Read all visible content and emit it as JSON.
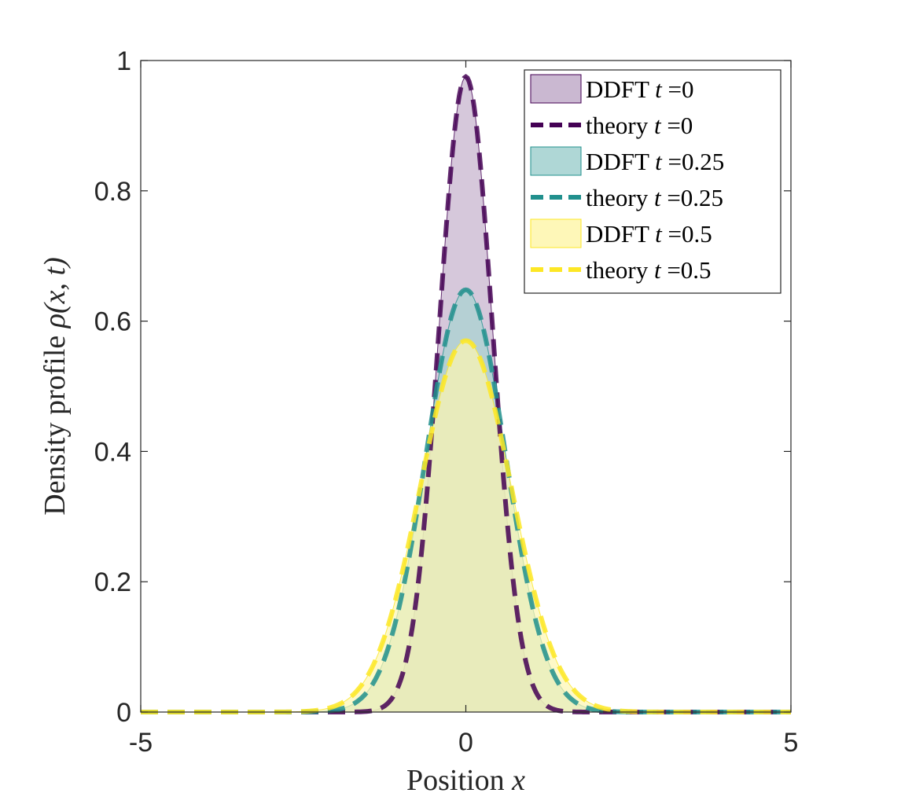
{
  "chart_data": {
    "type": "area",
    "xlabel": "Position x",
    "xlabel_parts": {
      "text": "Position ",
      "var": "x"
    },
    "ylabel": "Density profile ρ(x, t)",
    "ylabel_parts": {
      "text": "Density profile ",
      "var": "ρ(x, t)"
    },
    "xlim": [
      -5,
      5
    ],
    "ylim": [
      0,
      1
    ],
    "xticks": [
      -5,
      0,
      5
    ],
    "yticks": [
      0,
      0.2,
      0.4,
      0.6,
      0.8,
      1
    ],
    "xtick_labels": [
      "-5",
      "0",
      "5"
    ],
    "ytick_labels": [
      "0",
      "0.2",
      "0.4",
      "0.6",
      "0.8",
      "1"
    ],
    "legend_position": "top-right",
    "grid": false,
    "series": [
      {
        "name": "DDFT t =0",
        "label_text": "DDFT ",
        "label_var": "t",
        "label_suffix": " =0",
        "kind": "filled-area",
        "peak": 0.975,
        "width_sigma": 0.41,
        "color": "#440154",
        "fill": "#c4b0cc"
      },
      {
        "name": "theory t =0",
        "label_text": "theory ",
        "label_var": "t",
        "label_suffix": " =0",
        "kind": "dashed-line",
        "peak": 0.975,
        "width_sigma": 0.41,
        "color": "#440154"
      },
      {
        "name": "DDFT t =0.25",
        "label_text": "DDFT ",
        "label_var": "t",
        "label_suffix": " =0.25",
        "kind": "filled-area",
        "peak": 0.648,
        "width_sigma": 0.615,
        "color": "#21908d",
        "fill": "#a6d3d2"
      },
      {
        "name": "theory t =0.25",
        "label_text": "theory ",
        "label_var": "t",
        "label_suffix": " =0.25",
        "kind": "dashed-line",
        "peak": 0.648,
        "width_sigma": 0.615,
        "color": "#21908d"
      },
      {
        "name": "DDFT t =0.5",
        "label_text": "DDFT ",
        "label_var": "t",
        "label_suffix": " =0.5",
        "kind": "filled-area",
        "peak": 0.57,
        "width_sigma": 0.7,
        "color": "#fde725",
        "fill": "#fef6b0"
      },
      {
        "name": "theory t =0.5",
        "label_text": "theory ",
        "label_var": "t",
        "label_suffix": " =0.5",
        "kind": "dashed-line",
        "peak": 0.57,
        "width_sigma": 0.7,
        "color": "#fde725"
      }
    ]
  }
}
